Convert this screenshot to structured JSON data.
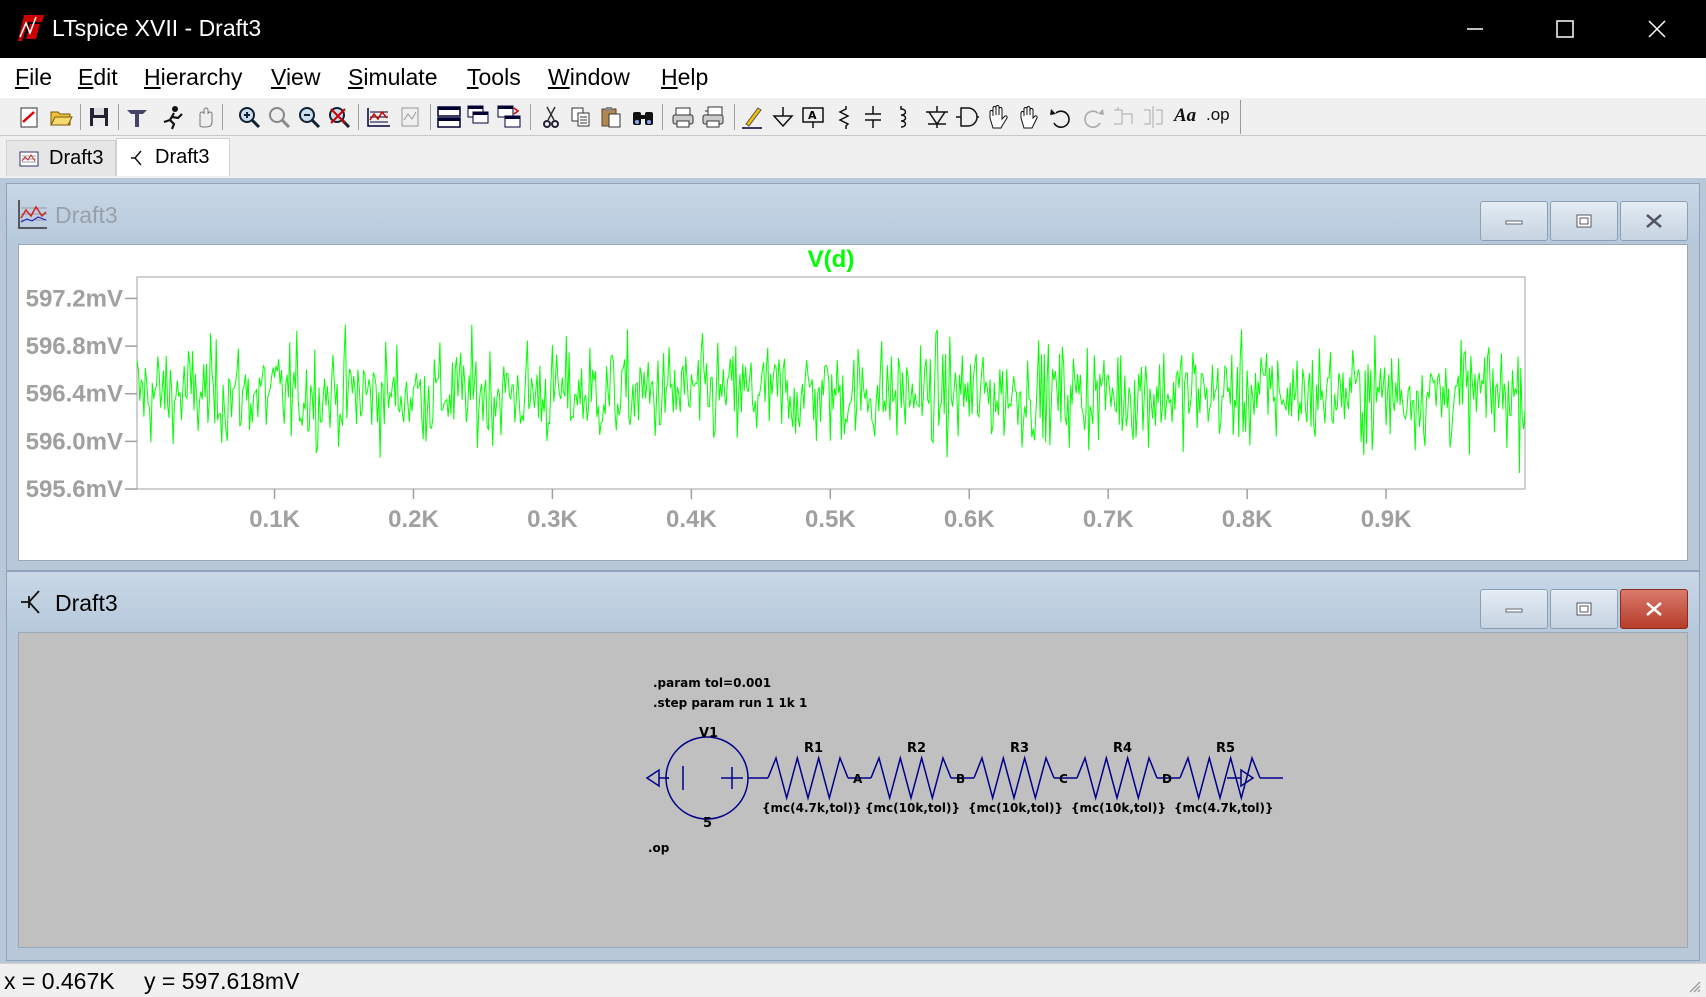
{
  "window": {
    "title": "LTspice XVII - Draft3"
  },
  "menu": [
    {
      "label": "File",
      "u": "F",
      "rest": "ile"
    },
    {
      "label": "Edit",
      "u": "E",
      "rest": "dit"
    },
    {
      "label": "Hierarchy",
      "u": "H",
      "rest": "ierarchy"
    },
    {
      "label": "View",
      "u": "V",
      "rest": "iew"
    },
    {
      "label": "Simulate",
      "u": "S",
      "rest": "imulate"
    },
    {
      "label": "Tools",
      "u": "T",
      "rest": "ools"
    },
    {
      "label": "Window",
      "u": "W",
      "rest": "indow"
    },
    {
      "label": "Help",
      "u": "H",
      "rest": "elp"
    }
  ],
  "toolbar": {
    "icons": [
      "new-schematic-icon",
      "open-icon",
      "save-icon",
      "control-panel-icon",
      "run-icon",
      "halt-icon",
      "zoom-in-icon",
      "pan-icon",
      "zoom-out-icon",
      "zoom-fit-icon",
      "autorange-icon",
      "add-trace-icon",
      "tile-horizontal-icon",
      "cascade-icon",
      "tile-vertical-icon",
      "cut-icon",
      "copy-icon",
      "paste-icon",
      "find-icon",
      "print-icon",
      "print-setup-icon",
      "draw-wire-icon",
      "ground-icon",
      "label-net-icon",
      "resistor-icon",
      "capacitor-icon",
      "inductor-icon",
      "diode-icon",
      "component-icon",
      "move-icon",
      "drag-icon",
      "undo-icon",
      "redo-icon",
      "rotate-icon",
      "mirror-icon",
      "text-icon",
      "spice-directive-icon"
    ],
    "text_label": "Aa",
    "op_label": ".op"
  },
  "tabs": [
    {
      "label": "Draft3",
      "icon": "waveform-icon",
      "active": false
    },
    {
      "label": "Draft3",
      "icon": "schematic-icon",
      "active": true
    }
  ],
  "plot_window": {
    "title": "Draft3",
    "trace_name": "V(d)",
    "trace_color": "#00ff00"
  },
  "chart_data": {
    "type": "line",
    "title": "V(d)",
    "xlabel": "",
    "ylabel": "",
    "x_unit": "run",
    "y_unit": "mV",
    "xlim": [
      1,
      1000
    ],
    "ylim": [
      595.6,
      597.38
    ],
    "x_ticks": [
      "0.1K",
      "0.2K",
      "0.3K",
      "0.4K",
      "0.5K",
      "0.6K",
      "0.7K",
      "0.8K",
      "0.9K"
    ],
    "x_tick_values": [
      100,
      200,
      300,
      400,
      500,
      600,
      700,
      800,
      900
    ],
    "y_ticks": [
      "597.2mV",
      "596.8mV",
      "596.4mV",
      "596.0mV",
      "595.6mV"
    ],
    "y_tick_values": [
      597.2,
      596.8,
      596.4,
      596.0,
      595.6
    ],
    "series": [
      {
        "name": "V(d)",
        "color": "#00ff00",
        "n_points": 1000,
        "mean": 596.4,
        "std": 0.21,
        "min": 595.64,
        "max": 597.33
      }
    ],
    "grid": false,
    "legend": "none"
  },
  "schematic_window": {
    "title": "Draft3",
    "directives": [
      ".param tol=0.001",
      ".step param run 1 1k 1"
    ],
    "op_directive": ".op",
    "source": {
      "name": "V1",
      "value": "5"
    },
    "resistors": [
      {
        "name": "R1",
        "value": "{mc(4.7k,tol)}"
      },
      {
        "name": "R2",
        "value": "{mc(10k,tol)}"
      },
      {
        "name": "R3",
        "value": "{mc(10k,tol)}"
      },
      {
        "name": "R4",
        "value": "{mc(10k,tol)}"
      },
      {
        "name": "R5",
        "value": "{mc(4.7k,tol)}"
      }
    ],
    "nodes": [
      "A",
      "B",
      "C",
      "D"
    ],
    "wire_color": "#00008b"
  },
  "status": {
    "x_readout": "x = 0.467K",
    "y_readout": "y = 597.618mV"
  }
}
